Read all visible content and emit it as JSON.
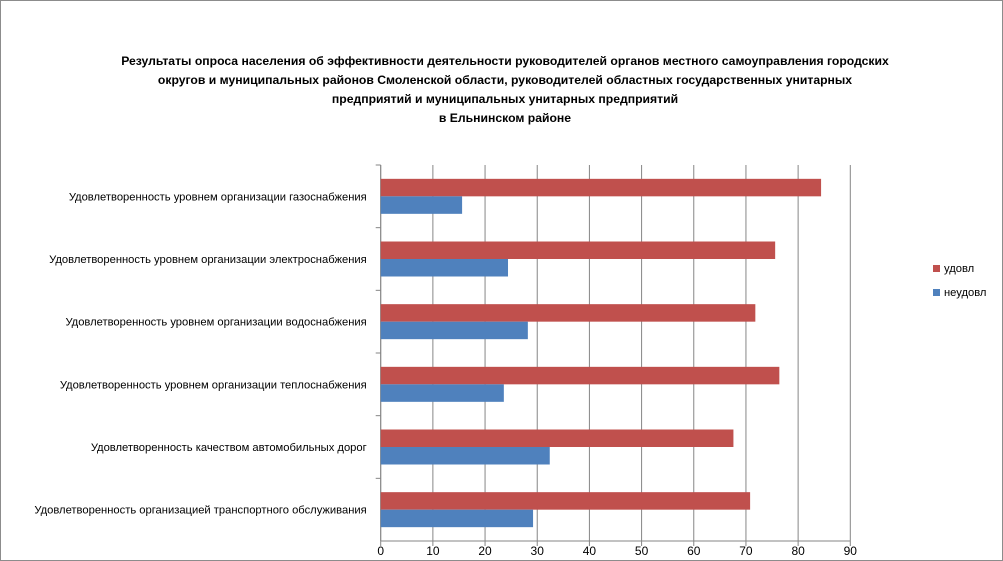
{
  "chart_data": {
    "type": "bar",
    "orientation": "horizontal",
    "title_lines": [
      "Результаты опроса населения об эффективности деятельности руководителей органов местного самоуправления городских",
      "округов и муниципальных районов Смоленской области, руководителей областных государственных унитарных",
      "предприятий и муниципальных унитарных предприятий",
      "в Ельнинском районе"
    ],
    "categories": [
      "Удовлетворенность  уровнем  организации газоснабжения",
      "Удовлетворенность  уровнем организации электроснабжения",
      "Удовлетворенность  уровнем  организации водоснабжения",
      "Удовлетворенность  уровнем организации теплоснабжения",
      "Удовлетворенность  качеством  автомобильных  дорог",
      "Удовлетворенность  организацией транспортного обслуживания"
    ],
    "series": [
      {
        "name": "удовл",
        "color": "#c0504d",
        "values": [
          84.4,
          75.6,
          71.8,
          76.4,
          67.6,
          70.8
        ]
      },
      {
        "name": "неудовл",
        "color": "#4f81bd",
        "values": [
          15.6,
          24.4,
          28.2,
          23.6,
          32.4,
          29.2
        ]
      }
    ],
    "xlim": [
      0,
      90
    ],
    "xticks": [
      "0",
      "10",
      "20",
      "30",
      "40",
      "50",
      "60",
      "70",
      "80",
      "90"
    ],
    "grid": true,
    "legend_position": "right"
  }
}
